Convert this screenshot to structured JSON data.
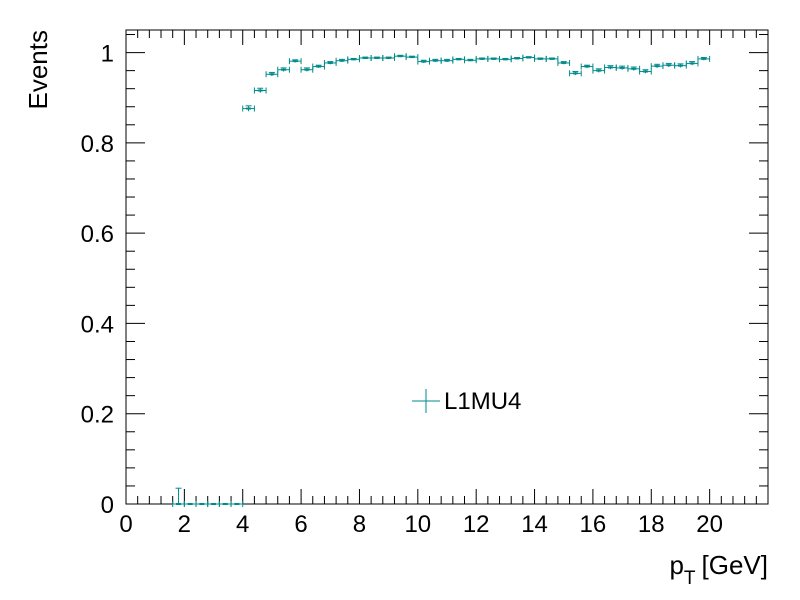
{
  "chart_data": {
    "type": "scatter",
    "title": "",
    "xlabel": "[GeV]",
    "xlabel_symbol": "p",
    "xlabel_subscript": "T",
    "ylabel": "Events",
    "xlim": [
      0,
      22
    ],
    "ylim": [
      0,
      1.05
    ],
    "grid": false,
    "legend_position": "center",
    "x_ticks": [
      "0",
      "2",
      "4",
      "6",
      "8",
      "10",
      "12",
      "14",
      "16",
      "18",
      "20"
    ],
    "y_ticks": [
      "0",
      "0.2",
      "0.4",
      "0.6",
      "0.8",
      "1"
    ],
    "series": [
      {
        "name": "L1MU4",
        "color": "#008b8b",
        "bin_width": 0.4,
        "x": [
          1.8,
          2.2,
          2.6,
          3.0,
          3.4,
          3.8,
          4.2,
          4.6,
          5.0,
          5.4,
          5.8,
          6.2,
          6.6,
          7.0,
          7.4,
          7.8,
          8.2,
          8.6,
          9.0,
          9.4,
          9.8,
          10.2,
          10.6,
          11.0,
          11.4,
          11.8,
          12.2,
          12.6,
          13.0,
          13.4,
          13.8,
          14.2,
          14.6,
          15.0,
          15.4,
          15.8,
          16.2,
          16.6,
          17.0,
          17.4,
          17.8,
          18.2,
          18.6,
          19.0,
          19.4,
          19.8
        ],
        "y": [
          0.0,
          0.0,
          0.0,
          0.0,
          0.0,
          0.0,
          0.876,
          0.916,
          0.952,
          0.962,
          0.981,
          0.962,
          0.969,
          0.977,
          0.982,
          0.985,
          0.988,
          0.988,
          0.988,
          0.992,
          0.99,
          0.98,
          0.982,
          0.982,
          0.985,
          0.983,
          0.986,
          0.986,
          0.985,
          0.987,
          0.989,
          0.986,
          0.986,
          0.977,
          0.954,
          0.969,
          0.96,
          0.967,
          0.966,
          0.964,
          0.958,
          0.97,
          0.972,
          0.971,
          0.976,
          0.986
        ],
        "y_err": [
          0.035,
          0.0,
          0.0,
          0.0,
          0.0,
          0.0,
          0.006,
          0.005,
          0.004,
          0.004,
          0.003,
          0.004,
          0.003,
          0.003,
          0.003,
          0.002,
          0.002,
          0.002,
          0.002,
          0.002,
          0.002,
          0.003,
          0.003,
          0.003,
          0.002,
          0.002,
          0.002,
          0.002,
          0.002,
          0.002,
          0.002,
          0.002,
          0.002,
          0.003,
          0.004,
          0.003,
          0.004,
          0.004,
          0.004,
          0.004,
          0.004,
          0.004,
          0.004,
          0.004,
          0.004,
          0.003
        ]
      }
    ]
  }
}
